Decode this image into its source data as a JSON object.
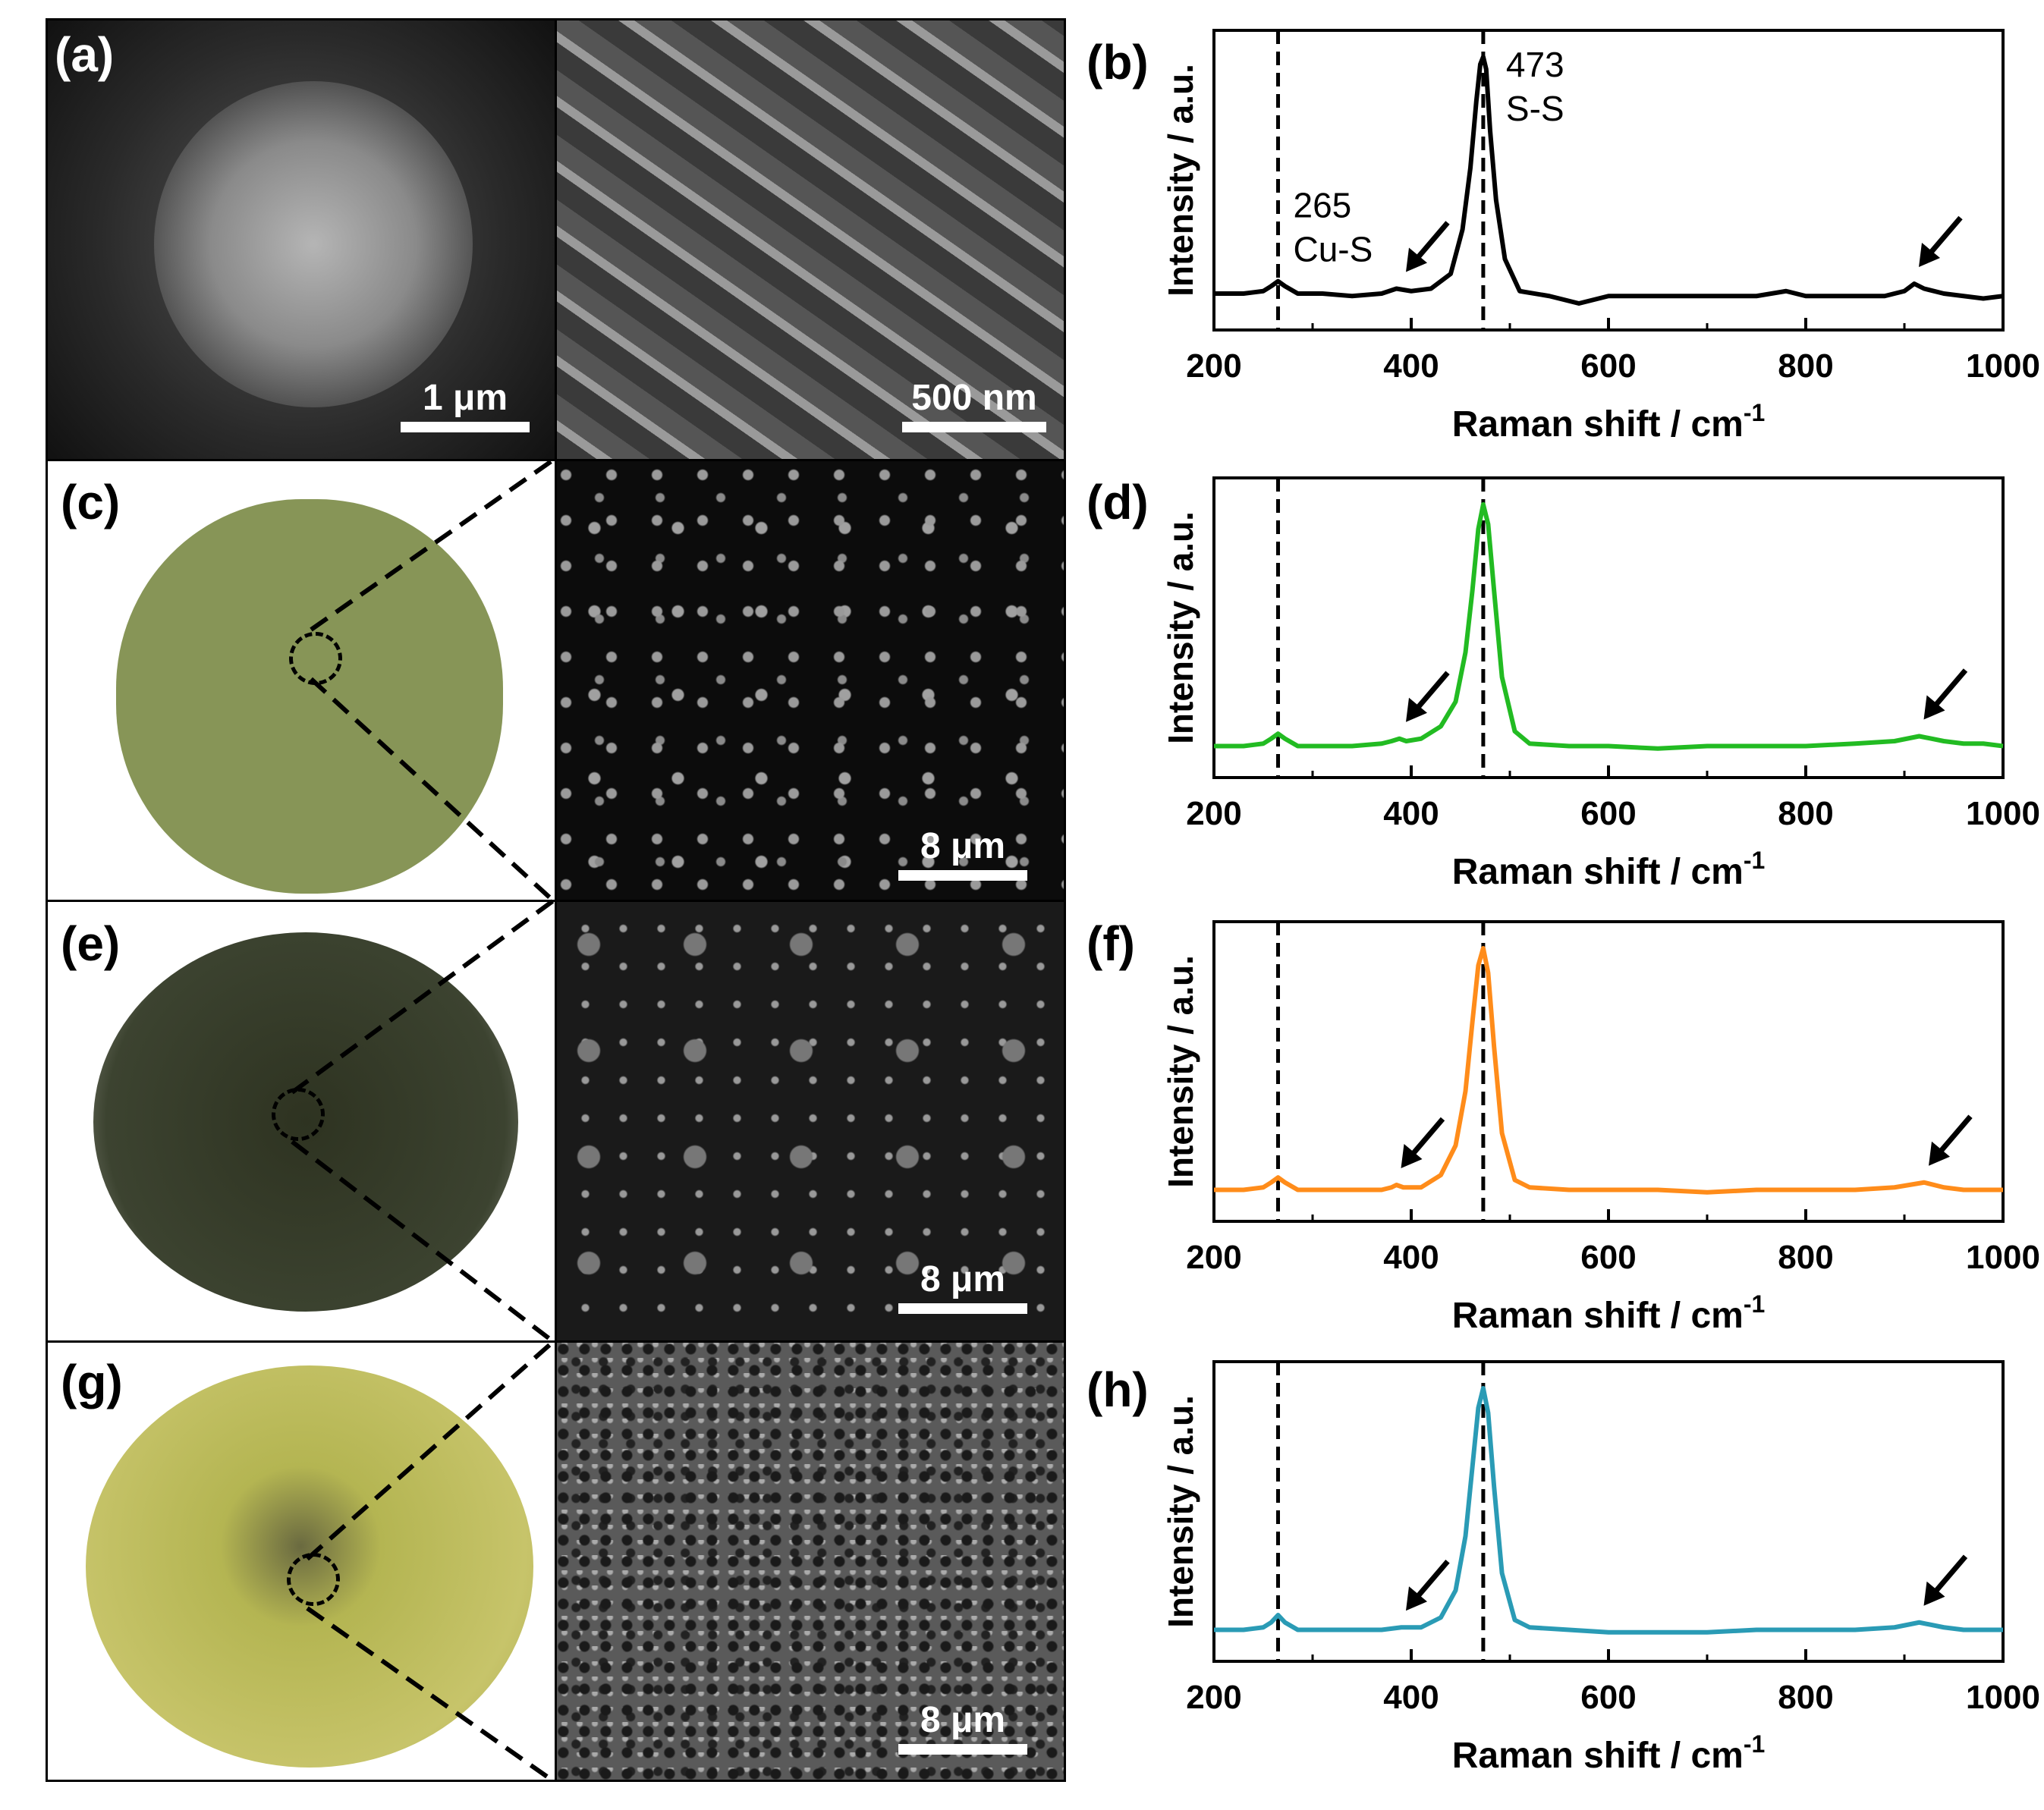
{
  "panels": {
    "a": "(a)",
    "b": "(b)",
    "c": "(c)",
    "d": "(d)",
    "e": "(e)",
    "f": "(f)",
    "g": "(g)",
    "h": "(h)"
  },
  "scalebars": {
    "a1": "1 μm",
    "a2": "500 nm",
    "c": "8 μm",
    "e": "8 μm",
    "g": "8 μm"
  },
  "photo_colors": {
    "c": "#7a8a45",
    "e": "#2e3321",
    "g": "#b4b552"
  },
  "chart_data": [
    {
      "type": "line",
      "panel": "(b)",
      "color": "#000000",
      "xlabel": "Raman shift / cm-1",
      "ylabel": "Intensity / a.u.",
      "xlim": [
        200,
        1000
      ],
      "xticks": [
        200,
        400,
        600,
        800,
        1000
      ],
      "dashed_lines_x": [
        265,
        473
      ],
      "annotations": [
        {
          "x": 265,
          "text": [
            "265",
            "Cu-S"
          ]
        },
        {
          "x": 473,
          "text": [
            "473",
            "S-S"
          ]
        }
      ],
      "arrows_at_x": [
        390,
        910
      ],
      "series": [
        {
          "x": [
            200,
            230,
            250,
            258,
            265,
            272,
            285,
            310,
            340,
            370,
            385,
            400,
            420,
            440,
            452,
            460,
            466,
            470,
            473,
            476,
            480,
            486,
            495,
            510,
            540,
            570,
            600,
            650,
            700,
            750,
            780,
            800,
            850,
            880,
            900,
            910,
            920,
            940,
            960,
            980,
            1000
          ],
          "y": [
            0.04,
            0.04,
            0.05,
            0.07,
            0.09,
            0.07,
            0.04,
            0.04,
            0.03,
            0.04,
            0.06,
            0.05,
            0.06,
            0.12,
            0.3,
            0.55,
            0.82,
            0.97,
            1.0,
            0.95,
            0.7,
            0.42,
            0.18,
            0.05,
            0.03,
            0.0,
            0.03,
            0.03,
            0.03,
            0.03,
            0.05,
            0.03,
            0.03,
            0.03,
            0.05,
            0.08,
            0.06,
            0.04,
            0.03,
            0.02,
            0.03
          ]
        }
      ]
    },
    {
      "type": "line",
      "panel": "(d)",
      "color": "#22bb22",
      "xlabel": "Raman shift / cm-1",
      "ylabel": "Intensity / a.u.",
      "xlim": [
        200,
        1000
      ],
      "xticks": [
        200,
        400,
        600,
        800,
        1000
      ],
      "dashed_lines_x": [
        265,
        473
      ],
      "arrows_at_x": [
        390,
        915
      ],
      "series": [
        {
          "x": [
            200,
            230,
            250,
            258,
            265,
            272,
            285,
            310,
            340,
            370,
            380,
            388,
            395,
            410,
            430,
            445,
            455,
            462,
            468,
            473,
            478,
            484,
            492,
            505,
            520,
            560,
            600,
            650,
            700,
            750,
            800,
            850,
            890,
            915,
            940,
            960,
            980,
            1000
          ],
          "y": [
            0.02,
            0.02,
            0.03,
            0.05,
            0.07,
            0.05,
            0.02,
            0.02,
            0.02,
            0.03,
            0.04,
            0.05,
            0.04,
            0.05,
            0.1,
            0.2,
            0.4,
            0.65,
            0.9,
            1.0,
            0.92,
            0.65,
            0.3,
            0.08,
            0.03,
            0.02,
            0.02,
            0.01,
            0.02,
            0.02,
            0.02,
            0.03,
            0.04,
            0.06,
            0.04,
            0.03,
            0.03,
            0.02
          ]
        }
      ]
    },
    {
      "type": "line",
      "panel": "(f)",
      "color": "#ff8c1a",
      "xlabel": "Raman shift / cm-1",
      "ylabel": "Intensity / a.u.",
      "xlim": [
        200,
        1000
      ],
      "xticks": [
        200,
        400,
        600,
        800,
        1000
      ],
      "dashed_lines_x": [
        265,
        473
      ],
      "arrows_at_x": [
        385,
        920
      ],
      "series": [
        {
          "x": [
            200,
            230,
            250,
            258,
            265,
            272,
            285,
            310,
            340,
            370,
            380,
            385,
            392,
            410,
            430,
            445,
            455,
            462,
            468,
            473,
            478,
            484,
            492,
            505,
            520,
            560,
            600,
            650,
            700,
            750,
            800,
            850,
            890,
            920,
            940,
            960,
            980,
            1000
          ],
          "y": [
            0.02,
            0.02,
            0.03,
            0.05,
            0.07,
            0.05,
            0.02,
            0.02,
            0.02,
            0.02,
            0.03,
            0.04,
            0.03,
            0.03,
            0.08,
            0.2,
            0.42,
            0.7,
            0.93,
            1.0,
            0.9,
            0.6,
            0.25,
            0.06,
            0.03,
            0.02,
            0.02,
            0.02,
            0.01,
            0.02,
            0.02,
            0.02,
            0.03,
            0.05,
            0.03,
            0.02,
            0.02,
            0.02
          ]
        }
      ]
    },
    {
      "type": "line",
      "panel": "(h)",
      "color": "#2a9bb5",
      "xlabel": "Raman shift / cm-1",
      "ylabel": "Intensity / a.u.",
      "xlim": [
        200,
        1000
      ],
      "xticks": [
        200,
        400,
        600,
        800,
        1000
      ],
      "dashed_lines_x": [
        265,
        473
      ],
      "arrows_at_x": [
        390,
        915
      ],
      "series": [
        {
          "x": [
            200,
            230,
            250,
            258,
            265,
            272,
            285,
            310,
            340,
            370,
            390,
            410,
            430,
            445,
            455,
            462,
            468,
            473,
            478,
            484,
            492,
            505,
            520,
            560,
            600,
            650,
            700,
            750,
            800,
            850,
            890,
            915,
            940,
            960,
            980,
            1000
          ],
          "y": [
            0.02,
            0.02,
            0.03,
            0.05,
            0.08,
            0.05,
            0.02,
            0.02,
            0.02,
            0.02,
            0.03,
            0.03,
            0.07,
            0.18,
            0.4,
            0.68,
            0.92,
            1.0,
            0.9,
            0.6,
            0.25,
            0.06,
            0.03,
            0.02,
            0.01,
            0.01,
            0.01,
            0.02,
            0.02,
            0.02,
            0.03,
            0.05,
            0.03,
            0.02,
            0.02,
            0.02
          ]
        }
      ]
    }
  ]
}
